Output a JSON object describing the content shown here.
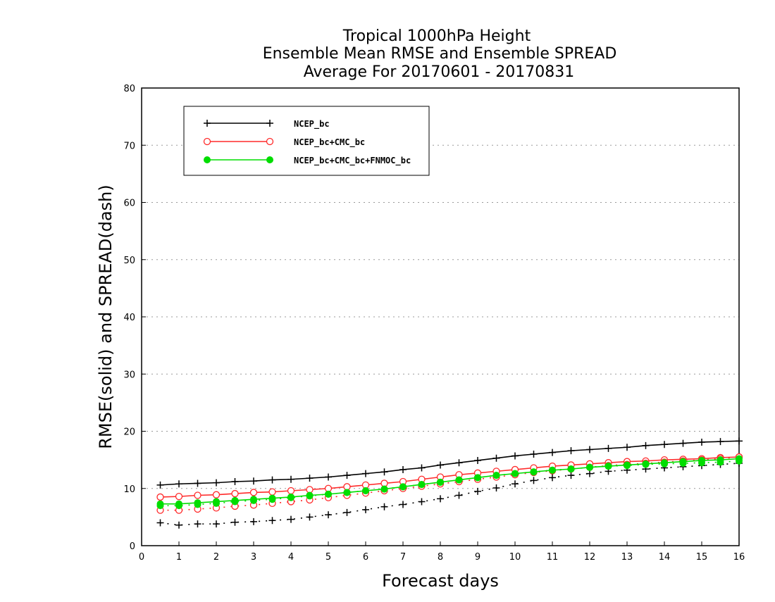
{
  "chart_data": {
    "type": "line",
    "title_lines": [
      "Tropical 1000hPa Height",
      "Ensemble Mean RMSE and Ensemble SPREAD",
      "Average For 20170601 - 20170831"
    ],
    "xlabel": "Forecast days",
    "ylabel": "RMSE(solid) and SPREAD(dash)",
    "xlim": [
      0,
      16
    ],
    "ylim": [
      0,
      80
    ],
    "xticks": [
      "0",
      "1",
      "2",
      "3",
      "4",
      "5",
      "6",
      "7",
      "8",
      "9",
      "10",
      "11",
      "12",
      "13",
      "14",
      "15",
      "16"
    ],
    "yticks": [
      "0",
      "10",
      "20",
      "30",
      "40",
      "50",
      "60",
      "70",
      "80"
    ],
    "grid": "horizontal dotted",
    "legend_position": "top-left",
    "x": [
      0.5,
      1,
      1.5,
      2,
      2.5,
      3,
      3.5,
      4,
      4.5,
      5,
      5.5,
      6,
      6.5,
      7,
      7.5,
      8,
      8.5,
      9,
      9.5,
      10,
      10.5,
      11,
      11.5,
      12,
      12.5,
      13,
      13.5,
      14,
      14.5,
      15,
      15.5,
      16
    ],
    "series": [
      {
        "name": "NCEP_bc",
        "color": "#000000",
        "marker": "plus",
        "rmse": [
          10.6,
          10.8,
          10.9,
          11.0,
          11.2,
          11.3,
          11.5,
          11.6,
          11.8,
          12.0,
          12.3,
          12.6,
          12.9,
          13.3,
          13.6,
          14.1,
          14.5,
          14.9,
          15.3,
          15.7,
          16.0,
          16.3,
          16.6,
          16.8,
          17.0,
          17.2,
          17.5,
          17.7,
          17.9,
          18.1,
          18.2,
          18.3
        ],
        "spread": [
          4.0,
          3.6,
          3.8,
          3.8,
          4.1,
          4.2,
          4.4,
          4.6,
          5.0,
          5.4,
          5.8,
          6.3,
          6.8,
          7.2,
          7.7,
          8.2,
          8.8,
          9.5,
          10.1,
          10.8,
          11.4,
          11.9,
          12.3,
          12.6,
          13.0,
          13.2,
          13.4,
          13.6,
          13.8,
          14.0,
          14.2,
          14.4
        ]
      },
      {
        "name": "NCEP_bc+CMC_bc",
        "color": "#ff2a2a",
        "marker": "open-circle",
        "rmse": [
          8.5,
          8.6,
          8.8,
          8.9,
          9.1,
          9.3,
          9.4,
          9.6,
          9.8,
          10.0,
          10.3,
          10.6,
          10.9,
          11.2,
          11.6,
          12.0,
          12.4,
          12.7,
          13.0,
          13.3,
          13.6,
          13.9,
          14.1,
          14.3,
          14.5,
          14.7,
          14.8,
          15.0,
          15.1,
          15.2,
          15.4,
          15.5
        ],
        "spread": [
          6.2,
          6.2,
          6.4,
          6.6,
          6.9,
          7.1,
          7.4,
          7.7,
          8.0,
          8.4,
          8.8,
          9.2,
          9.6,
          10.0,
          10.4,
          10.8,
          11.2,
          11.6,
          12.0,
          12.4,
          12.8,
          13.1,
          13.4,
          13.7,
          14.0,
          14.2,
          14.4,
          14.6,
          14.8,
          15.0,
          15.2,
          15.5
        ]
      },
      {
        "name": "NCEP_bc+CMC_bc+FNMOC_bc",
        "color": "#00dd00",
        "marker": "filled-circle",
        "rmse": [
          7.3,
          7.3,
          7.5,
          7.7,
          7.9,
          8.1,
          8.3,
          8.5,
          8.8,
          9.0,
          9.3,
          9.6,
          9.9,
          10.3,
          10.7,
          11.1,
          11.5,
          11.9,
          12.3,
          12.6,
          12.9,
          13.2,
          13.4,
          13.7,
          13.9,
          14.1,
          14.3,
          14.5,
          14.7,
          14.9,
          15.0,
          15.2
        ],
        "spread": [
          7.0,
          7.0,
          7.2,
          7.4,
          7.7,
          7.9,
          8.1,
          8.4,
          8.7,
          9.0,
          9.3,
          9.6,
          9.9,
          10.3,
          10.7,
          11.1,
          11.5,
          11.9,
          12.3,
          12.6,
          12.9,
          13.2,
          13.4,
          13.7,
          13.9,
          14.0,
          14.2,
          14.3,
          14.4,
          14.5,
          14.6,
          14.8
        ]
      }
    ]
  }
}
